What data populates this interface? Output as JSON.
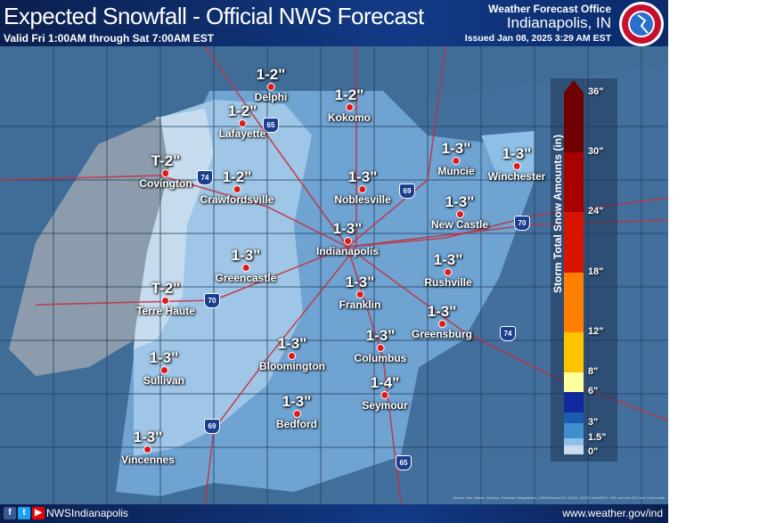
{
  "header": {
    "title": "Expected Snowfall - Official NWS Forecast",
    "valid": "Valid Fri 1:00AM through Sat 7:00AM EST",
    "office_label": "Weather Forecast Office",
    "office": "Indianapolis, IN",
    "issued": "Issued Jan 08, 2025 3:29 AM EST",
    "logo_text": "NATIONAL WEATHER SERVICE"
  },
  "cities": [
    {
      "name": "Delphi",
      "amount": "1-2\""
    },
    {
      "name": "Kokomo",
      "amount": "1-2\""
    },
    {
      "name": "Lafayette",
      "amount": "1-2\""
    },
    {
      "name": "Covington",
      "amount": "T-2\""
    },
    {
      "name": "Crawfordsville",
      "amount": "1-2\""
    },
    {
      "name": "Noblesville",
      "amount": "1-3\""
    },
    {
      "name": "Muncie",
      "amount": "1-3\""
    },
    {
      "name": "Winchester",
      "amount": "1-3\""
    },
    {
      "name": "New Castle",
      "amount": "1-3\""
    },
    {
      "name": "Indianapolis",
      "amount": "1-3\""
    },
    {
      "name": "Greencastle",
      "amount": "1-3\""
    },
    {
      "name": "Rushville",
      "amount": "1-3\""
    },
    {
      "name": "Terre Haute",
      "amount": "T-2\""
    },
    {
      "name": "Franklin",
      "amount": "1-3\""
    },
    {
      "name": "Greensburg",
      "amount": "1-3\""
    },
    {
      "name": "Columbus",
      "amount": "1-3\""
    },
    {
      "name": "Bloomington",
      "amount": "1-3\""
    },
    {
      "name": "Sullivan",
      "amount": "1-3\""
    },
    {
      "name": "Seymour",
      "amount": "1-4\""
    },
    {
      "name": "Bedford",
      "amount": "1-3\""
    },
    {
      "name": "Vincennes",
      "amount": "1-3\""
    }
  ],
  "interstates": [
    "74",
    "65",
    "69",
    "70",
    "70",
    "74",
    "69",
    "65"
  ],
  "legend": {
    "title": "Storm Total Snow Amounts (in)",
    "ticks": [
      "36\"",
      "30\"",
      "24\"",
      "18\"",
      "12\"",
      "8\"",
      "6\"",
      "3\"",
      "1.5\"",
      "0\""
    ],
    "colors": [
      "#6e0000",
      "#a80000",
      "#d81400",
      "#ff7f00",
      "#ffc400",
      "#ffff9e",
      "#102a9e",
      "#1b5cb0",
      "#3f8fd0",
      "#8cc0e6",
      "#c8dcee"
    ]
  },
  "footer": {
    "handle": "NWSIndianapolis",
    "url": "www.weather.gov/ind",
    "attribution": "Source: Esri, Maxar, GeoEye, Earthstar Geographics, CNES/Airbus DS, USDA, USGS, AeroGRID, IGN, and the GIS User Community",
    "social": [
      "facebook",
      "twitter",
      "youtube"
    ]
  }
}
